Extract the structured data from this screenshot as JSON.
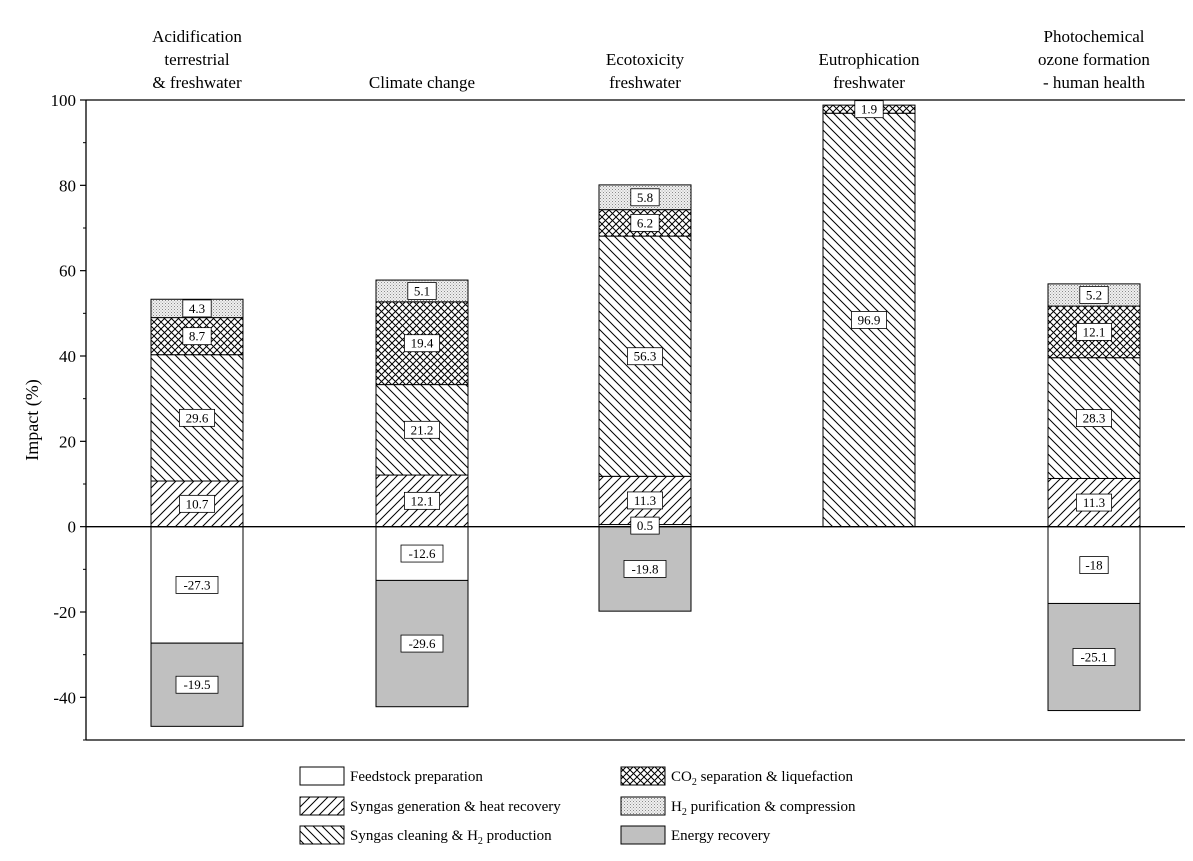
{
  "chart_data": {
    "type": "bar",
    "stacked": true,
    "ylabel": "Impact (%)",
    "ylim": [
      -50,
      100
    ],
    "yticks": [
      -40,
      -20,
      0,
      20,
      40,
      60,
      80,
      100
    ],
    "grid": false,
    "legend_position": "bottom",
    "categories": [
      [
        "Acidification",
        "terrestrial",
        "& freshwater"
      ],
      [
        "Climate change"
      ],
      [
        "Ecotoxicity",
        "freshwater"
      ],
      [
        "Eutrophication",
        "freshwater"
      ],
      [
        "Photochemical",
        "ozone formation",
        "- human health"
      ]
    ],
    "series": [
      {
        "name": "Feedstock preparation",
        "pattern": "none",
        "color": "#ffffff",
        "values": [
          -27.3,
          -12.6,
          0.5,
          null,
          -18
        ]
      },
      {
        "name": "Syngas generation & heat recovery",
        "pattern": "diag-right",
        "color": "#ffffff",
        "values": [
          10.7,
          12.1,
          11.3,
          null,
          11.3
        ]
      },
      {
        "name": "Syngas cleaning & H2 production",
        "name_rich": [
          "Syngas cleaning & H",
          "2",
          " production"
        ],
        "pattern": "diag-left",
        "color": "#ffffff",
        "values": [
          29.6,
          21.2,
          56.3,
          96.9,
          28.3
        ]
      },
      {
        "name": "CO2 separation & liquefaction",
        "name_rich": [
          "CO",
          "2",
          " separation & liquefaction"
        ],
        "pattern": "crosshatch",
        "color": "#ffffff",
        "values": [
          8.7,
          19.4,
          6.2,
          1.9,
          12.1
        ]
      },
      {
        "name": "H2 purification & compression",
        "name_rich": [
          "H",
          "2",
          " purification & compression"
        ],
        "pattern": "dots",
        "color": "#e6e6e6",
        "values": [
          4.3,
          5.1,
          5.8,
          null,
          5.2
        ]
      },
      {
        "name": "Energy recovery",
        "pattern": "none",
        "color": "#c0c0c0",
        "values": [
          -19.5,
          -29.6,
          -19.8,
          null,
          -25.1
        ]
      }
    ]
  }
}
